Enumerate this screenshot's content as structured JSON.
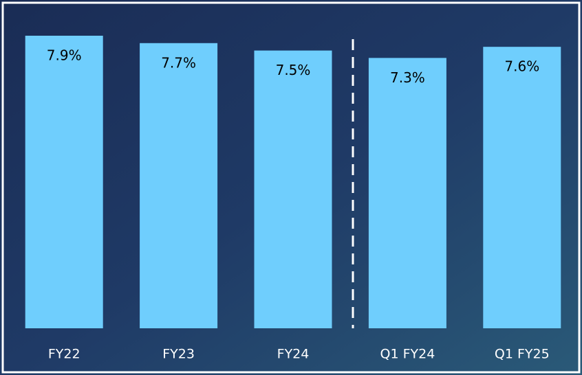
{
  "chart_data": {
    "type": "bar",
    "categories": [
      "FY22",
      "FY23",
      "FY24",
      "Q1 FY24",
      "Q1 FY25"
    ],
    "values": [
      7.9,
      7.7,
      7.5,
      7.3,
      7.6
    ],
    "value_labels": [
      "7.9%",
      "7.7%",
      "7.5%",
      "7.3%",
      "7.6%"
    ],
    "color": "#6fcefd"
  }
}
